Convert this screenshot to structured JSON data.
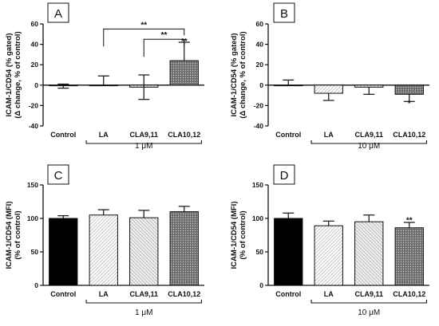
{
  "figure": {
    "categories": [
      "Control",
      "LA",
      "CLA9,11",
      "CLA10,12"
    ]
  },
  "chart_data": [
    {
      "panel": "A",
      "type": "bar",
      "categories": [
        "Control",
        "LA",
        "CLA9,11",
        "CLA10,12"
      ],
      "values": [
        0,
        0,
        -2,
        24
      ],
      "error_high": [
        1,
        9,
        12,
        18
      ],
      "error_low": [
        3,
        0,
        12,
        0
      ],
      "ylabel": [
        "ICAM-1/CD54 (% gated)",
        "(Δ change, % of control)"
      ],
      "ylim": [
        -40,
        60
      ],
      "yticks": [
        -40,
        -20,
        0,
        20,
        40,
        60
      ],
      "concentration": "1 μM",
      "annotations": [
        {
          "type": "bar-star",
          "category": "CLA10,12",
          "text": "**",
          "value": 43
        },
        {
          "type": "bracket",
          "from": "LA",
          "to": "CLA10,12",
          "text": "**",
          "value": 55
        },
        {
          "type": "bracket",
          "from": "CLA9,11",
          "to": "CLA10,12",
          "text": "**",
          "value": 45
        }
      ],
      "colors": [
        "#000000",
        "#ffffff",
        "#d8d8d8",
        "#707070"
      ]
    },
    {
      "panel": "B",
      "type": "bar",
      "categories": [
        "Control",
        "LA",
        "CLA9,11",
        "CLA10,12"
      ],
      "values": [
        0,
        -8,
        -2,
        -9
      ],
      "error_high": [
        5,
        0,
        0,
        0
      ],
      "error_low": [
        0,
        7,
        7,
        7
      ],
      "ylabel": [
        "ICAM-1/CD54 (% gated)",
        "(Δ change, % of control)"
      ],
      "ylim": [
        -40,
        60
      ],
      "yticks": [
        -40,
        -20,
        0,
        20,
        40,
        60
      ],
      "concentration": "10 μM",
      "annotations": [
        {
          "type": "bar-star",
          "category": "CLA10,12",
          "text": "*",
          "value": -18
        }
      ],
      "colors": [
        "#000000",
        "#ffffff",
        "#d8d8d8",
        "#707070"
      ]
    },
    {
      "panel": "C",
      "type": "bar",
      "categories": [
        "Control",
        "LA",
        "CLA9,11",
        "CLA10,12"
      ],
      "values": [
        100,
        105,
        101,
        110
      ],
      "error_high": [
        4,
        8,
        11,
        8
      ],
      "error_low": [
        0,
        0,
        0,
        0
      ],
      "ylabel": [
        "ICAM-1/CD54 (MFI)",
        "(%  of control)"
      ],
      "ylim": [
        0,
        150
      ],
      "yticks": [
        0,
        50,
        100,
        150
      ],
      "concentration": "1 μM",
      "annotations": [],
      "colors": [
        "#000000",
        "#ffffff",
        "#d8d8d8",
        "#707070"
      ]
    },
    {
      "panel": "D",
      "type": "bar",
      "categories": [
        "Control",
        "LA",
        "CLA9,11",
        "CLA10,12"
      ],
      "values": [
        100,
        89,
        95,
        86
      ],
      "error_high": [
        8,
        7,
        10,
        8
      ],
      "error_low": [
        0,
        0,
        0,
        0
      ],
      "ylabel": [
        "ICAM-1/CD54 (MFI)",
        "(%  of control)"
      ],
      "ylim": [
        0,
        150
      ],
      "yticks": [
        0,
        50,
        100,
        150
      ],
      "concentration": "10 μM",
      "annotations": [
        {
          "type": "bar-star",
          "category": "CLA10,12",
          "text": "**",
          "value": 97
        }
      ],
      "colors": [
        "#000000",
        "#ffffff",
        "#d8d8d8",
        "#707070"
      ]
    }
  ]
}
